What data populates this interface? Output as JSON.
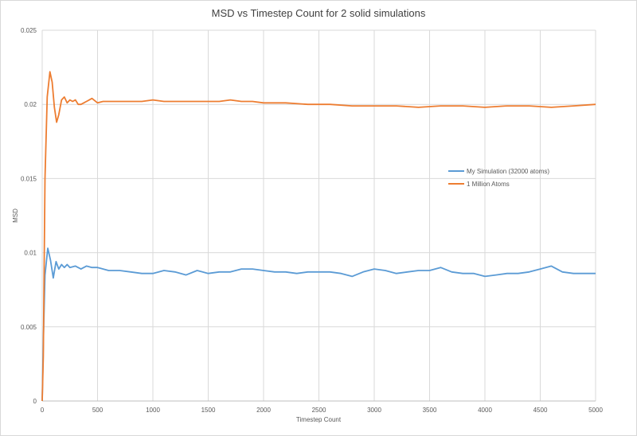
{
  "chart_data": {
    "type": "line",
    "title": "MSD vs Timestep Count for 2 solid simulations",
    "xlabel": "Timestep Count",
    "ylabel": "MSD",
    "xlim": [
      0,
      5000
    ],
    "ylim": [
      0,
      0.025
    ],
    "xticks": [
      "0",
      "500",
      "1000",
      "1500",
      "2000",
      "2500",
      "3000",
      "3500",
      "4000",
      "4500",
      "5000"
    ],
    "yticks": [
      "0",
      "0.005",
      "0.01",
      "0.015",
      "0.02",
      "0.025"
    ],
    "grid": true,
    "legend_position": "right",
    "series": [
      {
        "name": "My Simulation (32000 atoms)",
        "color": "#5B9BD5",
        "x": [
          0,
          10,
          25,
          50,
          75,
          100,
          125,
          150,
          175,
          200,
          225,
          250,
          300,
          350,
          400,
          450,
          500,
          600,
          700,
          800,
          900,
          1000,
          1100,
          1200,
          1300,
          1400,
          1500,
          1600,
          1700,
          1800,
          1900,
          2000,
          2100,
          2200,
          2300,
          2400,
          2500,
          2600,
          2700,
          2800,
          2900,
          3000,
          3100,
          3200,
          3300,
          3400,
          3500,
          3600,
          3700,
          3800,
          3900,
          4000,
          4100,
          4200,
          4300,
          4400,
          4500,
          4600,
          4700,
          4800,
          4900,
          5000
        ],
        "y": [
          0,
          0.004,
          0.0085,
          0.0103,
          0.0095,
          0.0083,
          0.0094,
          0.0089,
          0.0092,
          0.009,
          0.0092,
          0.009,
          0.0091,
          0.0089,
          0.0091,
          0.009,
          0.009,
          0.0088,
          0.0088,
          0.0087,
          0.0086,
          0.0086,
          0.0088,
          0.0087,
          0.0085,
          0.0088,
          0.0086,
          0.0087,
          0.0087,
          0.0089,
          0.0089,
          0.0088,
          0.0087,
          0.0087,
          0.0086,
          0.0087,
          0.0087,
          0.0087,
          0.0086,
          0.0084,
          0.0087,
          0.0089,
          0.0088,
          0.0086,
          0.0087,
          0.0088,
          0.0088,
          0.009,
          0.0087,
          0.0086,
          0.0086,
          0.0084,
          0.0085,
          0.0086,
          0.0086,
          0.0087,
          0.0089,
          0.0091,
          0.0087,
          0.0086,
          0.0086,
          0.0086
        ]
      },
      {
        "name": "1 Million Atoms",
        "color": "#ED7D31",
        "x": [
          0,
          10,
          25,
          45,
          70,
          90,
          110,
          130,
          150,
          175,
          200,
          225,
          250,
          275,
          300,
          325,
          350,
          400,
          450,
          500,
          550,
          600,
          700,
          800,
          900,
          1000,
          1100,
          1200,
          1300,
          1400,
          1500,
          1600,
          1700,
          1800,
          1900,
          2000,
          2200,
          2400,
          2600,
          2800,
          3000,
          3200,
          3400,
          3600,
          3800,
          4000,
          4200,
          4400,
          4600,
          4800,
          5000
        ],
        "y": [
          0,
          0.003,
          0.015,
          0.0205,
          0.0222,
          0.0215,
          0.0198,
          0.0188,
          0.0193,
          0.0203,
          0.0205,
          0.0201,
          0.0203,
          0.0202,
          0.0203,
          0.02,
          0.02,
          0.0202,
          0.0204,
          0.0201,
          0.0202,
          0.0202,
          0.0202,
          0.0202,
          0.0202,
          0.0203,
          0.0202,
          0.0202,
          0.0202,
          0.0202,
          0.0202,
          0.0202,
          0.0203,
          0.0202,
          0.0202,
          0.0201,
          0.0201,
          0.02,
          0.02,
          0.0199,
          0.0199,
          0.0199,
          0.0198,
          0.0199,
          0.0199,
          0.0198,
          0.0199,
          0.0199,
          0.0198,
          0.0199,
          0.02
        ]
      }
    ]
  }
}
